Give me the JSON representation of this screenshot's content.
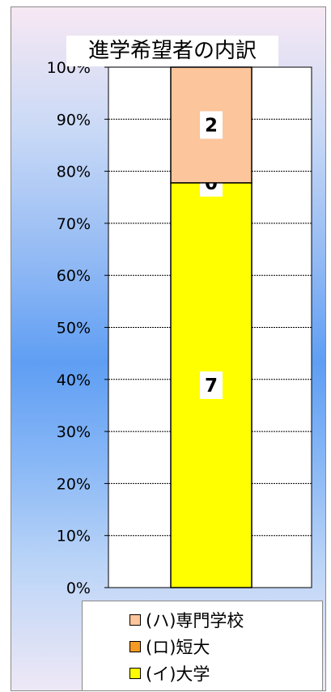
{
  "chart_data": {
    "type": "bar",
    "stacked": true,
    "title": "進学希望者の内訳",
    "y_ticks": [
      "0%",
      "10%",
      "20%",
      "30%",
      "40%",
      "50%",
      "60%",
      "70%",
      "80%",
      "90%",
      "100%"
    ],
    "ylim": [
      0,
      100
    ],
    "grid": true,
    "categories": [
      ""
    ],
    "series": [
      {
        "name": "(イ)大学",
        "values": [
          7
        ],
        "color": "#ffff00",
        "data_label": "7"
      },
      {
        "name": "(ロ)短大",
        "values": [
          0
        ],
        "color": "#f59a23",
        "data_label": "0"
      },
      {
        "name": "(ハ)専門学校",
        "values": [
          2
        ],
        "color": "#fcc59c",
        "data_label": "2"
      }
    ],
    "legend": {
      "position": "bottom",
      "items": [
        "(ハ)専門学校",
        "(ロ)短大",
        "(イ)大学"
      ],
      "colors": [
        "#fcc59c",
        "#f59a23",
        "#ffff00"
      ]
    }
  }
}
